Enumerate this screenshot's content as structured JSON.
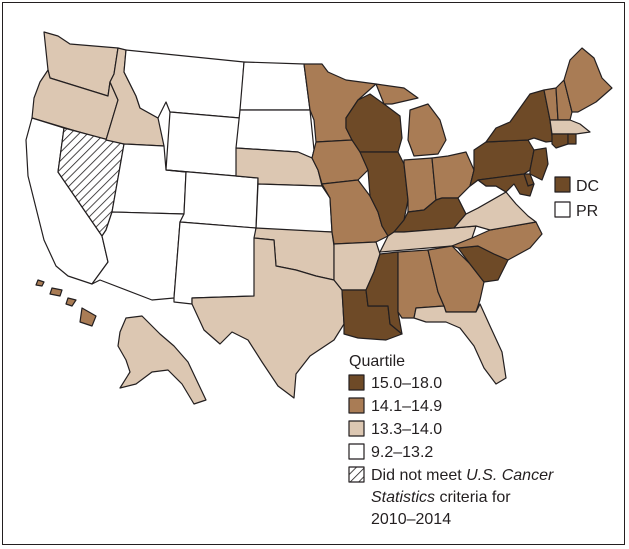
{
  "colors": {
    "q1": "#6e4a27",
    "q2": "#a97c55",
    "q3": "#dcc7b2",
    "q4": "#ffffff",
    "outline": "#231f20"
  },
  "territories": [
    {
      "code": "DC",
      "quartile": "15.0–18.0"
    },
    {
      "code": "PR",
      "quartile": "9.2–13.2"
    }
  ],
  "legend": {
    "title": "Quartile",
    "items": [
      {
        "label": "15.0–18.0",
        "class": "q1"
      },
      {
        "label": "14.1–14.9",
        "class": "q2"
      },
      {
        "label": "13.3–14.0",
        "class": "q3"
      },
      {
        "label": "9.2–13.2",
        "class": "q4"
      }
    ],
    "na_label_pre": "Did not meet ",
    "na_label_italic": "U.S. Cancer",
    "na_label_line2_italic": "Statistics",
    "na_label_line2_rest": " criteria for",
    "na_label_line3": "2010–2014"
  },
  "states": {
    "WA": "q3",
    "OR": "q3",
    "CA": "q4",
    "NV": "na",
    "ID": "q3",
    "MT": "q4",
    "WY": "q4",
    "UT": "q4",
    "AZ": "q4",
    "CO": "q4",
    "NM": "q4",
    "ND": "q4",
    "SD": "q4",
    "NE": "q3",
    "KS": "q4",
    "OK": "q3",
    "TX": "q3",
    "MN": "q2",
    "IA": "q2",
    "MO": "q2",
    "AR": "q3",
    "LA": "q1",
    "WI": "q1",
    "IL": "q1",
    "MI": "q2",
    "IN": "q2",
    "OH": "q2",
    "KY": "q1",
    "TN": "q3",
    "MS": "q1",
    "AL": "q2",
    "GA": "q2",
    "FL": "q3",
    "SC": "q1",
    "NC": "q2",
    "VA": "q3",
    "WV": "q4",
    "PA": "q1",
    "NY": "q1",
    "VT": "q2",
    "NH": "q2",
    "ME": "q2",
    "MA": "q3",
    "CT": "q1",
    "RI": "q1",
    "NJ": "q1",
    "DE": "q1",
    "MD": "q1",
    "AK": "q3",
    "HI": "q2"
  }
}
